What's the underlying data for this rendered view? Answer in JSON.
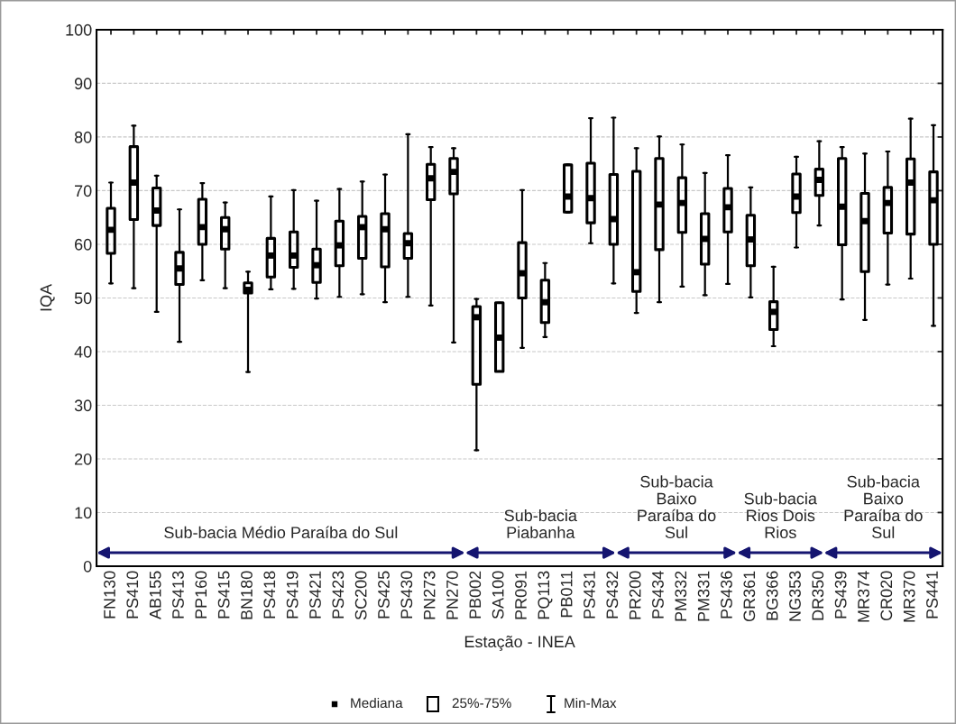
{
  "chart_data": {
    "type": "box",
    "xlabel": "Estação - INEA",
    "ylabel": "IQA",
    "categories": [
      "FN130",
      "PS410",
      "AB155",
      "PS413",
      "PP160",
      "PS415",
      "BN180",
      "PS418",
      "PS419",
      "PS421",
      "PS423",
      "SC200",
      "PS425",
      "PS430",
      "PN273",
      "PN270",
      "PB002",
      "SA100",
      "PR091",
      "PQ113",
      "PB011",
      "PS431",
      "PS432",
      "PR200",
      "PS434",
      "PM332",
      "PM331",
      "PS436",
      "GR361",
      "BG366",
      "NG353",
      "DR350",
      "PS439",
      "MR374",
      "CR020",
      "MR370",
      "PS441"
    ],
    "boxes": [
      {
        "low": 52.7,
        "q1": 58.3,
        "median": 62.7,
        "q3": 66.7,
        "high": 71.5
      },
      {
        "low": 51.8,
        "q1": 64.6,
        "median": 71.5,
        "q3": 78.2,
        "high": 82.1
      },
      {
        "low": 47.4,
        "q1": 63.5,
        "median": 66.3,
        "q3": 70.5,
        "high": 72.8
      },
      {
        "low": 41.8,
        "q1": 52.5,
        "median": 55.5,
        "q3": 58.5,
        "high": 66.5
      },
      {
        "low": 53.3,
        "q1": 60.0,
        "median": 63.2,
        "q3": 68.4,
        "high": 71.4
      },
      {
        "low": 51.8,
        "q1": 59.1,
        "median": 62.8,
        "q3": 65.0,
        "high": 67.8
      },
      {
        "low": 36.2,
        "q1": 50.9,
        "median": 51.5,
        "q3": 52.8,
        "high": 54.9
      },
      {
        "low": 51.6,
        "q1": 53.9,
        "median": 57.9,
        "q3": 61.1,
        "high": 68.9
      },
      {
        "low": 51.7,
        "q1": 55.7,
        "median": 57.9,
        "q3": 62.3,
        "high": 70.1
      },
      {
        "low": 49.9,
        "q1": 52.9,
        "median": 56.1,
        "q3": 59.1,
        "high": 68.1
      },
      {
        "low": 50.2,
        "q1": 56.0,
        "median": 59.8,
        "q3": 64.3,
        "high": 70.3
      },
      {
        "low": 50.7,
        "q1": 57.4,
        "median": 63.2,
        "q3": 65.2,
        "high": 71.7
      },
      {
        "low": 49.2,
        "q1": 55.8,
        "median": 62.8,
        "q3": 65.7,
        "high": 73.0
      },
      {
        "low": 50.2,
        "q1": 57.4,
        "median": 60.2,
        "q3": 62.0,
        "high": 80.5
      },
      {
        "low": 48.6,
        "q1": 68.3,
        "median": 72.3,
        "q3": 74.9,
        "high": 78.1
      },
      {
        "low": 41.7,
        "q1": 69.4,
        "median": 73.5,
        "q3": 76.0,
        "high": 77.9
      },
      {
        "low": 21.6,
        "q1": 33.9,
        "median": 46.4,
        "q3": 48.4,
        "high": 49.8
      },
      {
        "low": 36.3,
        "q1": 36.3,
        "median": 42.6,
        "q3": 49.1,
        "high": 49.1
      },
      {
        "low": 40.7,
        "q1": 50.0,
        "median": 54.6,
        "q3": 60.3,
        "high": 70.1
      },
      {
        "low": 42.7,
        "q1": 45.4,
        "median": 49.2,
        "q3": 53.3,
        "high": 56.5
      },
      {
        "low": 65.9,
        "q1": 66.0,
        "median": 68.9,
        "q3": 74.8,
        "high": 74.9
      },
      {
        "low": 60.2,
        "q1": 64.0,
        "median": 68.6,
        "q3": 75.1,
        "high": 83.5
      },
      {
        "low": 52.7,
        "q1": 60.0,
        "median": 64.7,
        "q3": 73.0,
        "high": 83.6
      },
      {
        "low": 47.2,
        "q1": 51.2,
        "median": 54.8,
        "q3": 73.6,
        "high": 77.9
      },
      {
        "low": 49.2,
        "q1": 59.0,
        "median": 67.4,
        "q3": 76.0,
        "high": 80.1
      },
      {
        "low": 52.1,
        "q1": 62.2,
        "median": 67.7,
        "q3": 72.4,
        "high": 78.6
      },
      {
        "low": 50.5,
        "q1": 56.3,
        "median": 61.0,
        "q3": 65.7,
        "high": 73.3
      },
      {
        "low": 52.6,
        "q1": 62.3,
        "median": 66.9,
        "q3": 70.4,
        "high": 76.6
      },
      {
        "low": 50.1,
        "q1": 56.0,
        "median": 60.9,
        "q3": 65.4,
        "high": 70.6
      },
      {
        "low": 41.0,
        "q1": 44.1,
        "median": 47.4,
        "q3": 49.3,
        "high": 55.8
      },
      {
        "low": 59.4,
        "q1": 65.9,
        "median": 68.9,
        "q3": 73.1,
        "high": 76.3
      },
      {
        "low": 63.5,
        "q1": 69.1,
        "median": 72.0,
        "q3": 74.0,
        "high": 79.2
      },
      {
        "low": 49.7,
        "q1": 59.9,
        "median": 67.0,
        "q3": 76.0,
        "high": 78.1
      },
      {
        "low": 45.9,
        "q1": 54.9,
        "median": 64.3,
        "q3": 69.5,
        "high": 76.9
      },
      {
        "low": 52.5,
        "q1": 62.1,
        "median": 67.7,
        "q3": 70.6,
        "high": 77.3
      },
      {
        "low": 53.6,
        "q1": 61.9,
        "median": 71.5,
        "q3": 75.9,
        "high": 83.4
      },
      {
        "low": 44.8,
        "q1": 60.0,
        "median": 68.2,
        "q3": 73.5,
        "high": 82.2
      }
    ],
    "ylim": [
      0,
      100
    ],
    "yticks": [
      0,
      10,
      20,
      30,
      40,
      50,
      60,
      70,
      80,
      90,
      100
    ],
    "grid": "y",
    "annotations": [
      "Sub-bacia Médio Paraíba do Sul",
      "Sub-bacia\nPiabanha",
      "Sub-bacia\nBaixo\nParaíba do\nSul",
      "Sub-bacia\nRios Dois\nRios",
      "Sub-bacia\nBaixo\nParaíba do\nSul",
      "Mediana",
      "25%-75%",
      "Min-Max"
    ]
  }
}
